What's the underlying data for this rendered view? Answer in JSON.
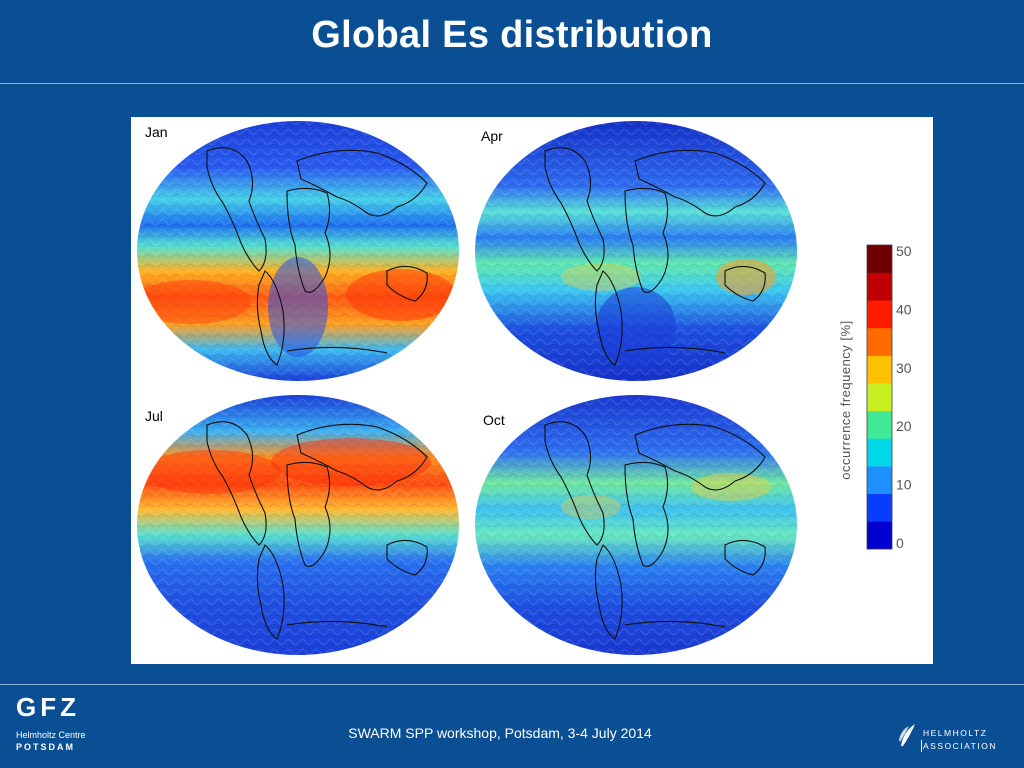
{
  "slide": {
    "title": "Global Es distribution",
    "footer": "SWARM SPP workshop, Potsdam, 3-4 July 2014"
  },
  "logos": {
    "gfz": {
      "letters": "GFZ",
      "line1": "Helmholtz Centre",
      "line2": "POTSDAM"
    },
    "helmholtz": {
      "line1": "HELMHOLTZ",
      "line2": "ASSOCIATION"
    }
  },
  "maps": [
    {
      "label": "Jan"
    },
    {
      "label": "Apr"
    },
    {
      "label": "Jul"
    },
    {
      "label": "Oct"
    }
  ],
  "colorbar": {
    "label": "occurrence frequency [%]",
    "min": 0,
    "max": 50,
    "ticks": [
      "50",
      "40",
      "30",
      "20",
      "10",
      "0"
    ],
    "colors": [
      "#0000d0",
      "#0a3cff",
      "#1e90ff",
      "#00d8e8",
      "#40e898",
      "#c8f020",
      "#ffc000",
      "#ff6a00",
      "#ff1a00",
      "#c00000",
      "#700000"
    ]
  }
}
